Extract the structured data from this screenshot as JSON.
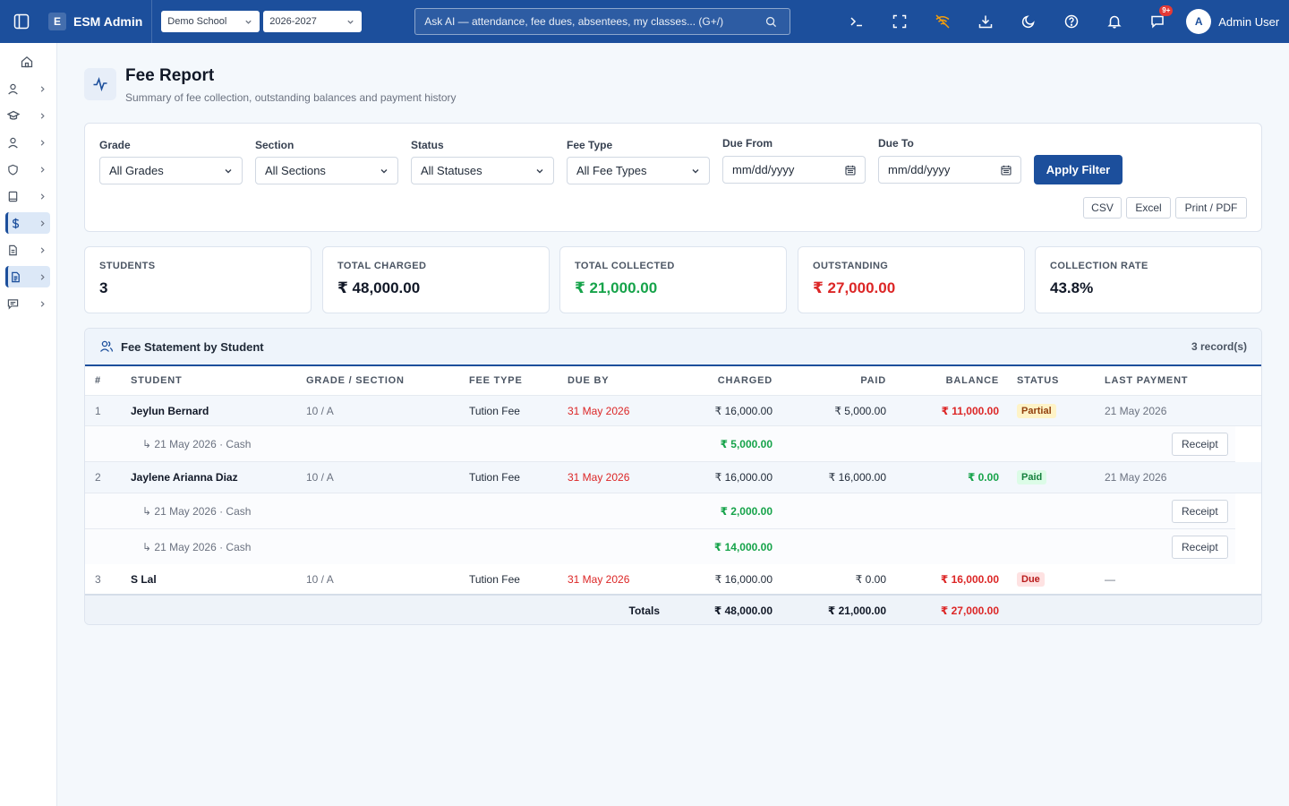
{
  "app": {
    "brand_letter": "E",
    "brand_name": "ESM Admin",
    "school": "Demo School",
    "year": "2026-2027",
    "search_placeholder": "Ask AI — attendance, fee dues, absentees, my classes... (G+/)",
    "notification_badge": "9+",
    "user_initial": "A",
    "user_name": "Admin User"
  },
  "page": {
    "title": "Fee Report",
    "subtitle": "Summary of fee collection, outstanding balances and payment history"
  },
  "filters": {
    "grade": {
      "label": "Grade",
      "value": "All Grades"
    },
    "section": {
      "label": "Section",
      "value": "All Sections"
    },
    "status": {
      "label": "Status",
      "value": "All Statuses"
    },
    "fee_type": {
      "label": "Fee Type",
      "value": "All Fee Types"
    },
    "due_from": {
      "label": "Due From",
      "placeholder": "mm/dd/yyyy"
    },
    "due_to": {
      "label": "Due To",
      "placeholder": "mm/dd/yyyy"
    },
    "apply_label": "Apply Filter",
    "export": {
      "csv": "CSV",
      "excel": "Excel",
      "print": "Print / PDF"
    }
  },
  "stats": [
    {
      "label": "STUDENTS",
      "value": "3"
    },
    {
      "label": "TOTAL CHARGED",
      "value": "₹ 48,000.00"
    },
    {
      "label": "TOTAL COLLECTED",
      "value": "₹ 21,000.00"
    },
    {
      "label": "OUTSTANDING",
      "value": "₹ 27,000.00"
    },
    {
      "label": "COLLECTION RATE",
      "value": "43.8%"
    }
  ],
  "table": {
    "title": "Fee Statement by Student",
    "count": "3 record(s)",
    "headers": {
      "num": "#",
      "student": "STUDENT",
      "grade": "GRADE / SECTION",
      "fee_type": "FEE TYPE",
      "due_by": "DUE BY",
      "charged": "CHARGED",
      "paid": "PAID",
      "balance": "BALANCE",
      "status": "STATUS",
      "last_payment": "LAST PAYMENT"
    },
    "rows": [
      {
        "num": "1",
        "student": "Jeylun Bernard",
        "grade": "10 / A",
        "fee_type": "Tution Fee",
        "due_by": "31 May 2026",
        "charged": "₹ 16,000.00",
        "paid": "₹ 5,000.00",
        "balance": "₹ 11,000.00",
        "status": "Partial",
        "last_payment": "21 May 2026"
      },
      {
        "num": "2",
        "student": "Jaylene Arianna Diaz",
        "grade": "10 / A",
        "fee_type": "Tution Fee",
        "due_by": "31 May 2026",
        "charged": "₹ 16,000.00",
        "paid": "₹ 16,000.00",
        "balance": "₹ 0.00",
        "status": "Paid",
        "last_payment": "21 May 2026"
      },
      {
        "num": "3",
        "student": "S Lal",
        "grade": "10 / A",
        "fee_type": "Tution Fee",
        "due_by": "31 May 2026",
        "charged": "₹ 16,000.00",
        "paid": "₹ 0.00",
        "balance": "₹ 16,000.00",
        "status": "Due",
        "last_payment": "—"
      }
    ],
    "payments": [
      {
        "detail": "↳ 21 May 2026  ·  Cash",
        "amount": "₹ 5,000.00",
        "action": "Receipt"
      },
      {
        "detail": "↳ 21 May 2026  ·  Cash",
        "amount": "₹ 2,000.00",
        "action": "Receipt"
      },
      {
        "detail": "↳ 21 May 2026  ·  Cash",
        "amount": "₹ 14,000.00",
        "action": "Receipt"
      }
    ],
    "totals": {
      "label": "Totals",
      "charged": "₹ 48,000.00",
      "paid": "₹ 21,000.00",
      "balance": "₹ 27,000.00"
    }
  }
}
